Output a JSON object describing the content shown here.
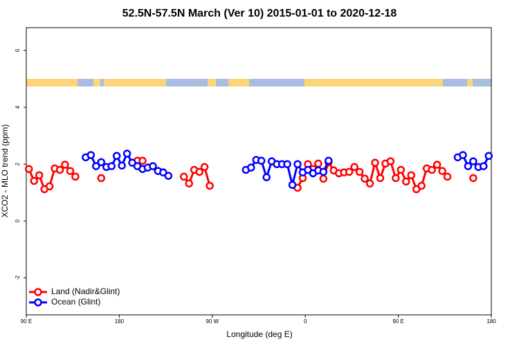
{
  "chart_data": {
    "type": "line",
    "title": "52.5N-57.5N March (Ver 10)   2015-01-01 to 2020-12-18",
    "xlabel": "Longitude (deg E)",
    "ylabel": "XCO2 - MLO trend (ppm)",
    "xlim": [
      90,
      540
    ],
    "xticks": [
      {
        "value": 90,
        "label": "90 E"
      },
      180,
      {
        "value": 270,
        "label": "90 W"
      },
      {
        "value": 360,
        "label": "0"
      },
      {
        "value": 450,
        "label": "90 E"
      },
      {
        "value": 540,
        "label": "180"
      }
    ],
    "ylim": [
      -3.3,
      6.8
    ],
    "yticks": [
      -2,
      0,
      2,
      4,
      6
    ],
    "legend": "bottom-left",
    "series": [
      {
        "name": "Land (Nadir&Glint)",
        "color": "#ff0000",
        "x": [
          92.5,
          97.5,
          102.5,
          107.5,
          112.5,
          117.5,
          122.5,
          127.5,
          132.5,
          137.5,
          142.5,
          162.5,
          167.5,
          197.5,
          202.5,
          207.5,
          242.5,
          247.5,
          252.5,
          257.5,
          262.5,
          267.5,
          272.5,
          352.5,
          357.5,
          362.5,
          367.5,
          372.5,
          377.5,
          382.5,
          387.5,
          392.5,
          397.5,
          402.5,
          407.5,
          412.5,
          417.5,
          422.5,
          427.5,
          432.5,
          437.5,
          442.5,
          447.5,
          452.5,
          457.5,
          462.5,
          467.5,
          472.5,
          477.5,
          482.5,
          487.5,
          492.5,
          497.5,
          502.5,
          522.5
        ],
        "values": [
          1.83,
          1.41,
          1.61,
          1.12,
          1.22,
          1.85,
          1.8,
          1.98,
          1.76,
          1.56,
          null,
          1.51,
          null,
          2.12,
          2.12,
          null,
          1.56,
          1.32,
          1.8,
          1.73,
          1.9,
          1.24,
          null,
          1.17,
          1.51,
          2.0,
          1.83,
          2.02,
          1.49,
          2.07,
          1.78,
          1.68,
          1.71,
          1.73,
          1.9,
          1.73,
          1.49,
          1.32,
          2.05,
          1.51,
          2.02,
          2.1,
          1.51,
          1.8,
          1.39,
          1.61,
          1.12,
          1.24,
          1.85,
          1.8,
          1.98,
          1.76,
          1.56,
          null,
          1.51
        ]
      },
      {
        "name": "Ocean (Glint)",
        "color": "#0000ff",
        "x": [
          147.5,
          152.5,
          157.5,
          162.5,
          167.5,
          172.5,
          177.5,
          182.5,
          187.5,
          192.5,
          197.5,
          202.5,
          207.5,
          212.5,
          217.5,
          222.5,
          227.5,
          232.5,
          302.5,
          307.5,
          312.5,
          317.5,
          322.5,
          327.5,
          332.5,
          337.5,
          342.5,
          347.5,
          352.5,
          357.5,
          362.5,
          367.5,
          372.5,
          377.5,
          382.5,
          387.5,
          507.5,
          512.5,
          517.5,
          522.5,
          527.5,
          532.5,
          537.5
        ],
        "values": [
          2.24,
          2.32,
          1.93,
          2.07,
          1.9,
          1.93,
          2.29,
          1.95,
          2.37,
          2.05,
          1.93,
          1.83,
          1.88,
          1.93,
          1.76,
          1.71,
          1.59,
          null,
          1.8,
          1.88,
          2.15,
          2.12,
          1.54,
          2.1,
          2.0,
          2.0,
          2.0,
          1.27,
          2.0,
          1.71,
          1.8,
          1.68,
          1.78,
          1.73,
          2.12,
          null,
          2.24,
          2.32,
          1.93,
          2.1,
          1.9,
          1.93,
          2.29
        ]
      }
    ]
  }
}
